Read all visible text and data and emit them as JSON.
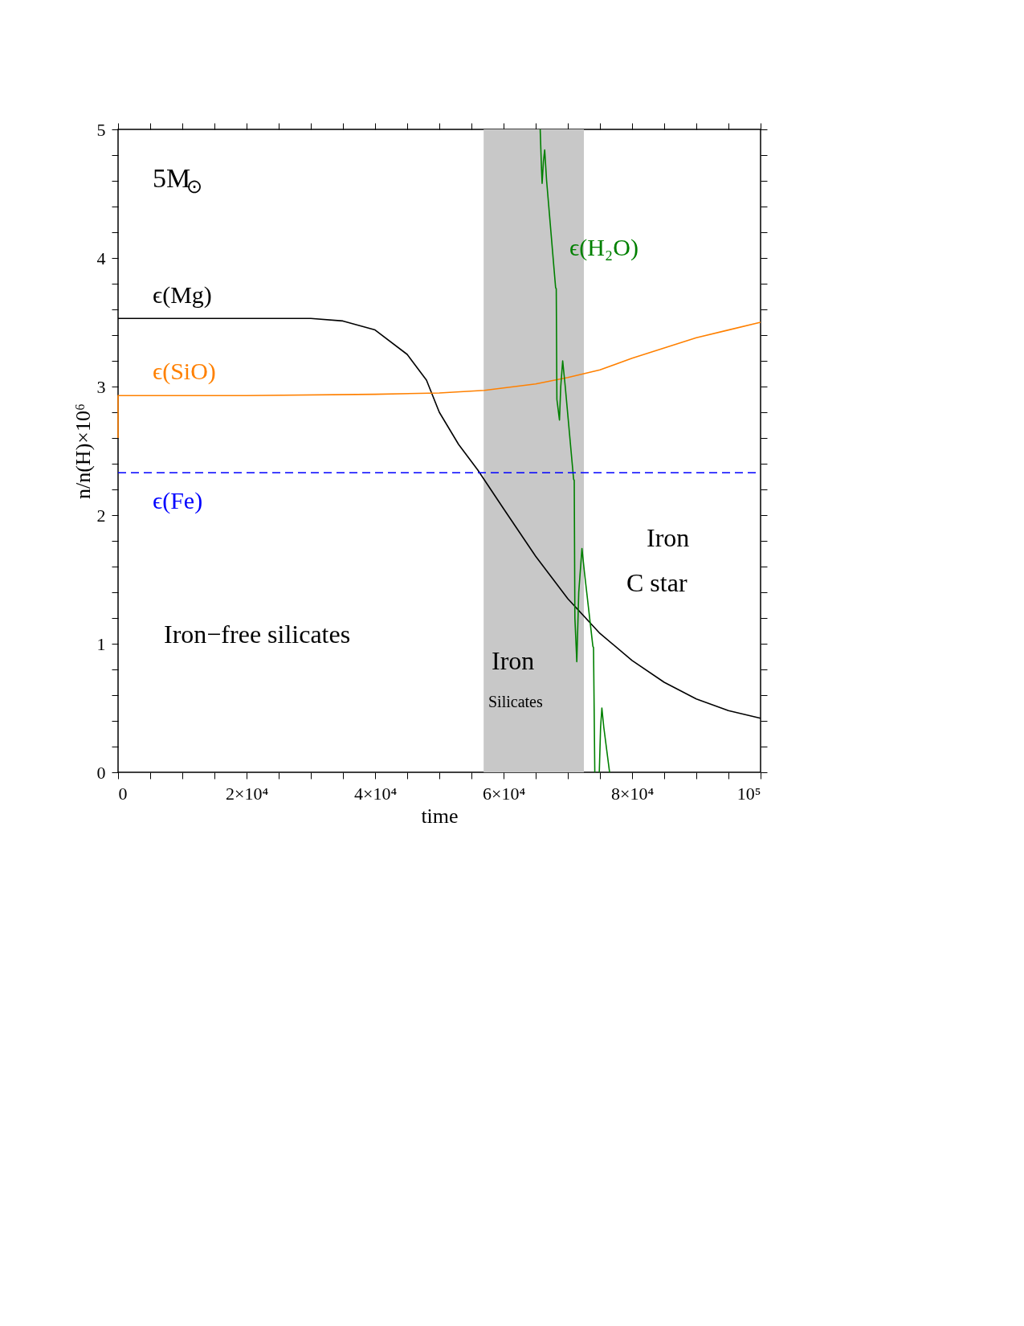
{
  "chart_data": {
    "type": "line",
    "xlabel": "time",
    "ylabel": "n/n(H)×10⁶",
    "xlim": [
      0,
      100000
    ],
    "ylim": [
      0,
      5
    ],
    "xticks": [
      0,
      {
        "value": 5000,
        "label": null
      },
      {
        "value": 10000,
        "label": null
      },
      {
        "value": 15000,
        "label": null
      },
      {
        "value": 20000,
        "label": "2×10⁴"
      },
      {
        "value": 25000,
        "label": null
      },
      {
        "value": 30000,
        "label": null
      },
      {
        "value": 35000,
        "label": null
      },
      {
        "value": 40000,
        "label": "4×10⁴"
      },
      {
        "value": 45000,
        "label": null
      },
      {
        "value": 50000,
        "label": null
      },
      {
        "value": 55000,
        "label": null
      },
      {
        "value": 60000,
        "label": "6×10⁴"
      },
      {
        "value": 65000,
        "label": null
      },
      {
        "value": 70000,
        "label": null
      },
      {
        "value": 75000,
        "label": null
      },
      {
        "value": 80000,
        "label": "8×10⁴"
      },
      {
        "value": 85000,
        "label": null
      },
      {
        "value": 90000,
        "label": null
      },
      {
        "value": 95000,
        "label": null
      },
      {
        "value": 100000,
        "label": "10⁵"
      }
    ],
    "yticks": [
      0,
      {
        "value": 0.2,
        "label": null
      },
      {
        "value": 0.4,
        "label": null
      },
      {
        "value": 0.6,
        "label": null
      },
      {
        "value": 0.8,
        "label": null
      },
      1,
      {
        "value": 1.2,
        "label": null
      },
      {
        "value": 1.4,
        "label": null
      },
      {
        "value": 1.6,
        "label": null
      },
      {
        "value": 1.8,
        "label": null
      },
      2,
      {
        "value": 2.2,
        "label": null
      },
      {
        "value": 2.4,
        "label": null
      },
      {
        "value": 2.6,
        "label": null
      },
      {
        "value": 2.8,
        "label": null
      },
      3,
      {
        "value": 3.2,
        "label": null
      },
      {
        "value": 3.4,
        "label": null
      },
      {
        "value": 3.6,
        "label": null
      },
      {
        "value": 3.8,
        "label": null
      },
      4,
      {
        "value": 4.2,
        "label": null
      },
      {
        "value": 4.4,
        "label": null
      },
      {
        "value": 4.6,
        "label": null
      },
      {
        "value": 4.8,
        "label": null
      },
      5
    ],
    "grid": false,
    "line_style": "solid",
    "marker": "none",
    "series": [
      {
        "name": "ϵ(Mg)",
        "color": "#000000",
        "x": [
          0,
          10000,
          20000,
          30000,
          35000,
          40000,
          45000,
          48000,
          50000,
          53000,
          56000,
          60000,
          65000,
          70000,
          75000,
          80000,
          85000,
          90000,
          95000,
          100000
        ],
        "values": [
          3.53,
          3.53,
          3.53,
          3.53,
          3.51,
          3.44,
          3.25,
          3.05,
          2.8,
          2.55,
          2.35,
          2.05,
          1.68,
          1.35,
          1.08,
          0.87,
          0.7,
          0.57,
          0.48,
          0.42
        ]
      },
      {
        "name": "ϵ(SiO)",
        "color": "#ff8000",
        "x": [
          0,
          0,
          20000,
          40000,
          50000,
          57000,
          65000,
          70000,
          75000,
          80000,
          85000,
          90000,
          95000,
          100000
        ],
        "values": [
          2.6,
          2.93,
          2.93,
          2.94,
          2.95,
          2.97,
          3.02,
          3.07,
          3.13,
          3.22,
          3.3,
          3.38,
          3.44,
          3.5
        ]
      },
      {
        "name": "ϵ(H₂O)",
        "color": "#008000",
        "x": [
          65700,
          65900,
          66000,
          66200,
          66400,
          66700,
          68100,
          68200,
          68300,
          68700,
          68900,
          69200,
          69600,
          70900,
          71000,
          71100,
          71400,
          71700,
          72200,
          72600,
          73900,
          74000,
          74200,
          74500,
          74900,
          75100,
          75300,
          75600,
          76500
        ],
        "values": [
          5.0,
          4.7,
          4.58,
          4.75,
          4.84,
          4.6,
          3.77,
          3.76,
          2.9,
          2.74,
          3.0,
          3.2,
          3.0,
          2.28,
          2.27,
          1.2,
          0.86,
          1.4,
          1.74,
          1.55,
          0.98,
          0.97,
          0,
          null,
          0,
          0.35,
          0.5,
          0.35,
          0
        ]
      }
    ],
    "ref_lines": [
      {
        "axis": "y",
        "value": 2.33,
        "label": "ϵ(Fe)",
        "color": "#0000ff",
        "line_style": "dashed"
      }
    ],
    "bands": [
      {
        "axis": "x",
        "from": 56900,
        "to": 72500,
        "color": "#c8c8c8"
      }
    ],
    "annotations": [
      "5M$_{⊙}$",
      "Iron−free silicates",
      "Iron",
      "Silicates",
      "Iron",
      "C star"
    ]
  }
}
